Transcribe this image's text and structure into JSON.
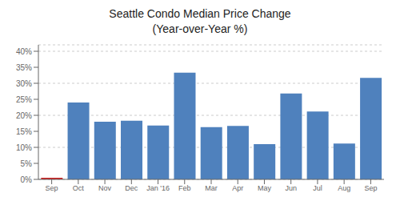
{
  "chart_data": {
    "type": "bar",
    "title": "Seattle Condo Median Price Change",
    "subtitle": "(Year-over-Year %)",
    "categories": [
      "Sep",
      "Oct",
      "Nov",
      "Dec",
      "Jan '16",
      "Feb",
      "Mar",
      "Apr",
      "May",
      "Jun",
      "Jul",
      "Aug",
      "Sep"
    ],
    "values": [
      0.005,
      0.24,
      0.18,
      0.183,
      0.168,
      0.333,
      0.163,
      0.167,
      0.11,
      0.268,
      0.212,
      0.112,
      0.317
    ],
    "colors": [
      "#CC2222",
      "#4F81BD",
      "#4F81BD",
      "#4F81BD",
      "#4F81BD",
      "#4F81BD",
      "#4F81BD",
      "#4F81BD",
      "#4F81BD",
      "#4F81BD",
      "#4F81BD",
      "#4F81BD",
      "#4F81BD"
    ],
    "ylim": [
      0,
      0.42
    ],
    "yticks": [
      {
        "value": 0.0,
        "label": "0%"
      },
      {
        "value": 0.05,
        "label": "5%"
      },
      {
        "value": 0.1,
        "label": "10%"
      },
      {
        "value": 0.15,
        "label": "15%"
      },
      {
        "value": 0.2,
        "label": "20%"
      },
      {
        "value": 0.25,
        "label": "25%"
      },
      {
        "value": 0.3,
        "label": "30%"
      },
      {
        "value": 0.35,
        "label": "35%"
      },
      {
        "value": 0.4,
        "label": "40%"
      }
    ],
    "grid": true
  }
}
